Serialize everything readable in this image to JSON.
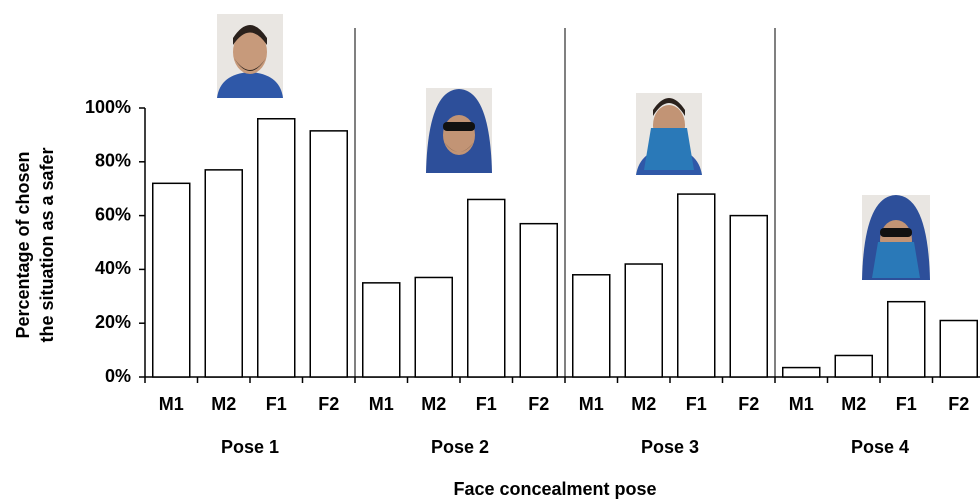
{
  "chart_data": {
    "type": "bar",
    "ylabel": [
      "Percentage of chosen",
      "the situation as a safer"
    ],
    "xlabel": "Face concealment pose",
    "groups": [
      "Pose 1",
      "Pose 2",
      "Pose 3",
      "Pose 4"
    ],
    "categories": [
      "M1",
      "M2",
      "F1",
      "F2",
      "M1",
      "M2",
      "F1",
      "F2",
      "M1",
      "M2",
      "F1",
      "F2",
      "M1",
      "M2",
      "F1",
      "F2"
    ],
    "values": [
      72,
      77,
      96,
      91.5,
      35,
      37,
      66,
      57,
      38,
      42,
      68,
      60,
      3.5,
      8,
      28,
      21
    ],
    "color": "#ffffff",
    "ylim": [
      0,
      100
    ],
    "yticks": [
      {
        "value": 0,
        "label": "0%"
      },
      {
        "value": 20,
        "label": "20%"
      },
      {
        "value": 40,
        "label": "40%"
      },
      {
        "value": 60,
        "label": "60%"
      },
      {
        "value": 80,
        "label": "80%"
      },
      {
        "value": 100,
        "label": "100%"
      }
    ],
    "grid": false
  }
}
